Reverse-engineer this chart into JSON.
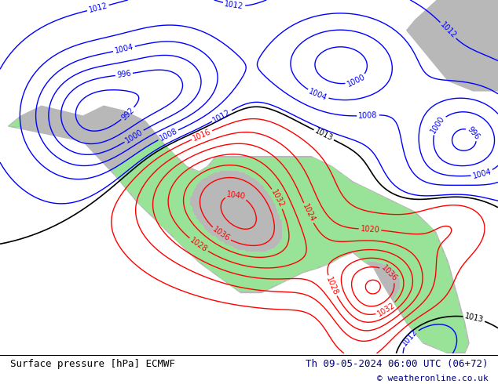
{
  "bottom_left_text": "Surface pressure [hPa] ECMWF",
  "bottom_right_text": "Th 09-05-2024 06:00 UTC (06+72)",
  "copyright_text": "© weatheronline.co.uk",
  "ocean_color": "#c8d4e0",
  "land_color": "#b8b8b8",
  "green_color": "#90ee90",
  "fig_width": 6.34,
  "fig_height": 4.9,
  "dpi": 100
}
